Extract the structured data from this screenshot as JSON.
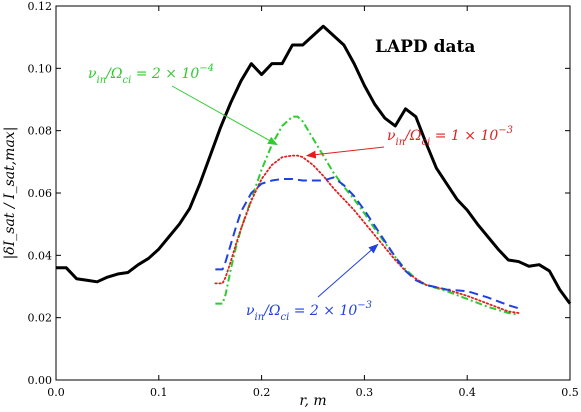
{
  "chart_data": {
    "type": "line",
    "title": "",
    "xlabel": "r, m",
    "ylabel": "|δI_sat / I_sat,max|",
    "xlim": [
      0.0,
      0.5
    ],
    "ylim": [
      0.0,
      0.12
    ],
    "xticks": [
      "0.0",
      "0.1",
      "0.2",
      "0.3",
      "0.4",
      "0.5"
    ],
    "yticks": [
      "0.00",
      "0.02",
      "0.04",
      "0.06",
      "0.08",
      "0.10",
      "0.12"
    ],
    "grid": false,
    "legend": "none",
    "series": [
      {
        "name": "LAPD data",
        "color": "#000000",
        "style": "solid",
        "x": [
          0.0,
          0.01,
          0.02,
          0.03,
          0.04,
          0.05,
          0.06,
          0.07,
          0.08,
          0.09,
          0.1,
          0.11,
          0.12,
          0.13,
          0.14,
          0.15,
          0.16,
          0.17,
          0.18,
          0.19,
          0.2,
          0.21,
          0.22,
          0.23,
          0.24,
          0.25,
          0.26,
          0.27,
          0.28,
          0.29,
          0.3,
          0.31,
          0.32,
          0.33,
          0.34,
          0.35,
          0.36,
          0.37,
          0.38,
          0.39,
          0.4,
          0.41,
          0.42,
          0.43,
          0.44,
          0.45,
          0.46,
          0.47,
          0.48,
          0.49,
          0.5
        ],
        "y": [
          0.036,
          0.036,
          0.0325,
          0.032,
          0.0315,
          0.033,
          0.034,
          0.0345,
          0.037,
          0.039,
          0.042,
          0.046,
          0.05,
          0.055,
          0.063,
          0.072,
          0.081,
          0.089,
          0.096,
          0.1015,
          0.098,
          0.1015,
          0.1015,
          0.1075,
          0.1075,
          0.1105,
          0.1135,
          0.1105,
          0.1075,
          0.1015,
          0.0945,
          0.0885,
          0.084,
          0.0815,
          0.087,
          0.0845,
          0.076,
          0.068,
          0.063,
          0.058,
          0.0545,
          0.05,
          0.046,
          0.042,
          0.0385,
          0.038,
          0.0365,
          0.037,
          0.035,
          0.029,
          0.0245
        ]
      },
      {
        "name": "ν_in/Ω_ci = 2 × 10^-4",
        "color": "#2ecc2e",
        "style": "dashdot",
        "x": [
          0.155,
          0.16,
          0.162,
          0.165,
          0.17,
          0.175,
          0.18,
          0.19,
          0.2,
          0.21,
          0.22,
          0.23,
          0.235,
          0.24,
          0.25,
          0.26,
          0.27,
          0.28,
          0.29,
          0.3,
          0.31,
          0.32,
          0.33,
          0.34,
          0.35,
          0.36,
          0.38,
          0.4,
          0.42,
          0.44,
          0.45
        ],
        "y": [
          0.0245,
          0.0245,
          0.0245,
          0.0275,
          0.0355,
          0.0425,
          0.0485,
          0.058,
          0.0675,
          0.0755,
          0.0815,
          0.0845,
          0.0845,
          0.083,
          0.0775,
          0.072,
          0.0665,
          0.062,
          0.058,
          0.0535,
          0.0485,
          0.044,
          0.0395,
          0.0355,
          0.0325,
          0.0305,
          0.0285,
          0.026,
          0.0235,
          0.0215,
          0.021
        ]
      },
      {
        "name": "ν_in/Ω_ci = 1 × 10^-3",
        "color": "#e02020",
        "style": "dotted",
        "x": [
          0.155,
          0.16,
          0.162,
          0.165,
          0.17,
          0.175,
          0.18,
          0.19,
          0.2,
          0.21,
          0.22,
          0.23,
          0.235,
          0.24,
          0.25,
          0.26,
          0.27,
          0.28,
          0.29,
          0.3,
          0.31,
          0.32,
          0.33,
          0.34,
          0.35,
          0.36,
          0.38,
          0.4,
          0.42,
          0.44,
          0.45
        ],
        "y": [
          0.031,
          0.031,
          0.031,
          0.033,
          0.038,
          0.0435,
          0.0485,
          0.0575,
          0.0645,
          0.069,
          0.0715,
          0.072,
          0.072,
          0.0715,
          0.069,
          0.0655,
          0.0615,
          0.058,
          0.0545,
          0.0505,
          0.0465,
          0.0425,
          0.0385,
          0.035,
          0.0325,
          0.0305,
          0.029,
          0.027,
          0.0245,
          0.022,
          0.0215
        ]
      },
      {
        "name": "ν_in/Ω_ci = 2 × 10^-3",
        "color": "#2040e0",
        "style": "dashed",
        "x": [
          0.155,
          0.16,
          0.162,
          0.165,
          0.17,
          0.175,
          0.18,
          0.19,
          0.2,
          0.21,
          0.22,
          0.23,
          0.24,
          0.25,
          0.26,
          0.27,
          0.28,
          0.29,
          0.3,
          0.31,
          0.32,
          0.33,
          0.34,
          0.35,
          0.36,
          0.38,
          0.4,
          0.42,
          0.44,
          0.45
        ],
        "y": [
          0.0355,
          0.0355,
          0.0355,
          0.038,
          0.0435,
          0.049,
          0.054,
          0.06,
          0.063,
          0.064,
          0.0645,
          0.0645,
          0.064,
          0.064,
          0.064,
          0.065,
          0.0625,
          0.059,
          0.0545,
          0.0495,
          0.0445,
          0.0395,
          0.035,
          0.032,
          0.0305,
          0.029,
          0.0285,
          0.0265,
          0.024,
          0.023
        ]
      }
    ],
    "annotations": {
      "data_label": "LAPD data",
      "green": {
        "prefix": "ν",
        "sub1": "in",
        "mid": "/Ω",
        "sub2": "ci",
        "eq": " = 2 × 10",
        "exp": "−4",
        "color": "#2ecc2e",
        "arrow_to": [
          0.215,
          0.0755
        ]
      },
      "red": {
        "prefix": "ν",
        "sub1": "in",
        "mid": "/Ω",
        "sub2": "ci",
        "eq": " = 1 × 10",
        "exp": "−3",
        "color": "#e02020",
        "arrow_to": [
          0.244,
          0.072
        ]
      },
      "blue": {
        "prefix": "ν",
        "sub1": "in",
        "mid": "/Ω",
        "sub2": "ci",
        "eq": " = 2 × 10",
        "exp": "−3",
        "color": "#2040e0",
        "arrow_to": [
          0.313,
          0.0435
        ]
      }
    }
  }
}
